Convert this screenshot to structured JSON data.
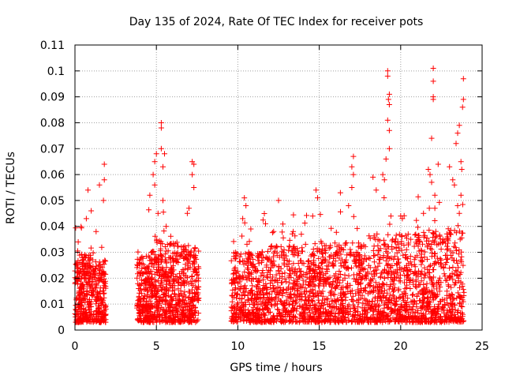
{
  "chart_data": {
    "type": "scatter",
    "title": "Day 135 of 2024, Rate Of TEC Index for receiver pots",
    "xlabel": "GPS time / hours",
    "ylabel": "ROTI / TECUs",
    "xlim": [
      0,
      25
    ],
    "ylim": [
      0,
      0.11
    ],
    "grid": true,
    "marker": "+",
    "color": "#ff0000",
    "x_ticks": [
      0,
      5,
      10,
      15,
      20,
      25
    ],
    "x_tick_labels": [
      "0",
      "5",
      "10",
      "15",
      "20",
      "25"
    ],
    "y_ticks": [
      0,
      0.01,
      0.02,
      0.03,
      0.04,
      0.05,
      0.06,
      0.07,
      0.08,
      0.09,
      0.1,
      0.11
    ],
    "y_tick_labels": [
      "0",
      "0.01",
      "0.02",
      "0.03",
      "0.04",
      "0.05",
      "0.06",
      "0.07",
      "0.08",
      "0.09",
      "0.1",
      "0.11"
    ],
    "density_segments": [
      {
        "x0": 0.0,
        "x1": 1.0,
        "base": 0.012,
        "spread": 0.012,
        "n": 260
      },
      {
        "x0": 1.0,
        "x1": 1.9,
        "base": 0.012,
        "spread": 0.01,
        "n": 180
      },
      {
        "x0": 3.8,
        "x1": 5.0,
        "base": 0.013,
        "spread": 0.012,
        "n": 280
      },
      {
        "x0": 5.0,
        "x1": 6.2,
        "base": 0.015,
        "spread": 0.014,
        "n": 260
      },
      {
        "x0": 6.2,
        "x1": 7.6,
        "base": 0.014,
        "spread": 0.013,
        "n": 280
      },
      {
        "x0": 9.6,
        "x1": 12.0,
        "base": 0.013,
        "spread": 0.012,
        "n": 420
      },
      {
        "x0": 12.0,
        "x1": 15.0,
        "base": 0.014,
        "spread": 0.013,
        "n": 480
      },
      {
        "x0": 15.0,
        "x1": 18.0,
        "base": 0.015,
        "spread": 0.013,
        "n": 480
      },
      {
        "x0": 18.0,
        "x1": 21.0,
        "base": 0.016,
        "spread": 0.015,
        "n": 480
      },
      {
        "x0": 21.0,
        "x1": 23.9,
        "base": 0.016,
        "spread": 0.016,
        "n": 480
      }
    ],
    "notable_points": [
      {
        "x": 0.2,
        "y": 0.034
      },
      {
        "x": 0.7,
        "y": 0.043
      },
      {
        "x": 0.8,
        "y": 0.054
      },
      {
        "x": 1.0,
        "y": 0.046
      },
      {
        "x": 1.3,
        "y": 0.038
      },
      {
        "x": 1.5,
        "y": 0.056
      },
      {
        "x": 1.8,
        "y": 0.064
      },
      {
        "x": 1.8,
        "y": 0.058
      },
      {
        "x": 1.75,
        "y": 0.05
      },
      {
        "x": 4.6,
        "y": 0.052
      },
      {
        "x": 4.8,
        "y": 0.06
      },
      {
        "x": 4.9,
        "y": 0.065
      },
      {
        "x": 5.0,
        "y": 0.068
      },
      {
        "x": 4.9,
        "y": 0.056
      },
      {
        "x": 5.1,
        "y": 0.045
      },
      {
        "x": 5.3,
        "y": 0.08
      },
      {
        "x": 5.3,
        "y": 0.078
      },
      {
        "x": 5.3,
        "y": 0.07
      },
      {
        "x": 5.5,
        "y": 0.068
      },
      {
        "x": 5.4,
        "y": 0.063
      },
      {
        "x": 5.4,
        "y": 0.05
      },
      {
        "x": 5.6,
        "y": 0.04
      },
      {
        "x": 6.9,
        "y": 0.045
      },
      {
        "x": 7.2,
        "y": 0.065
      },
      {
        "x": 7.3,
        "y": 0.064
      },
      {
        "x": 7.2,
        "y": 0.06
      },
      {
        "x": 7.3,
        "y": 0.055
      },
      {
        "x": 7.0,
        "y": 0.047
      },
      {
        "x": 10.4,
        "y": 0.051
      },
      {
        "x": 10.5,
        "y": 0.048
      },
      {
        "x": 10.3,
        "y": 0.043
      },
      {
        "x": 10.8,
        "y": 0.039
      },
      {
        "x": 11.7,
        "y": 0.041
      },
      {
        "x": 12.5,
        "y": 0.05
      },
      {
        "x": 12.2,
        "y": 0.038
      },
      {
        "x": 13.4,
        "y": 0.038
      },
      {
        "x": 13.9,
        "y": 0.037
      },
      {
        "x": 14.6,
        "y": 0.044
      },
      {
        "x": 14.8,
        "y": 0.054
      },
      {
        "x": 14.9,
        "y": 0.051
      },
      {
        "x": 16.3,
        "y": 0.053
      },
      {
        "x": 16.8,
        "y": 0.048
      },
      {
        "x": 17.1,
        "y": 0.067
      },
      {
        "x": 17.0,
        "y": 0.063
      },
      {
        "x": 17.1,
        "y": 0.06
      },
      {
        "x": 17.0,
        "y": 0.055
      },
      {
        "x": 18.3,
        "y": 0.059
      },
      {
        "x": 18.5,
        "y": 0.054
      },
      {
        "x": 18.9,
        "y": 0.06
      },
      {
        "x": 19.0,
        "y": 0.058
      },
      {
        "x": 19.2,
        "y": 0.1
      },
      {
        "x": 19.2,
        "y": 0.098
      },
      {
        "x": 19.3,
        "y": 0.091
      },
      {
        "x": 19.25,
        "y": 0.089
      },
      {
        "x": 19.3,
        "y": 0.087
      },
      {
        "x": 19.2,
        "y": 0.081
      },
      {
        "x": 19.3,
        "y": 0.077
      },
      {
        "x": 19.3,
        "y": 0.07
      },
      {
        "x": 19.1,
        "y": 0.066
      },
      {
        "x": 20.0,
        "y": 0.044
      },
      {
        "x": 20.1,
        "y": 0.043
      },
      {
        "x": 21.1,
        "y": 0.035
      },
      {
        "x": 21.4,
        "y": 0.045
      },
      {
        "x": 21.7,
        "y": 0.062
      },
      {
        "x": 21.8,
        "y": 0.06
      },
      {
        "x": 21.9,
        "y": 0.057
      },
      {
        "x": 22.0,
        "y": 0.101
      },
      {
        "x": 22.0,
        "y": 0.096
      },
      {
        "x": 22.0,
        "y": 0.09
      },
      {
        "x": 22.0,
        "y": 0.089
      },
      {
        "x": 21.9,
        "y": 0.074
      },
      {
        "x": 22.1,
        "y": 0.052
      },
      {
        "x": 22.1,
        "y": 0.047
      },
      {
        "x": 22.3,
        "y": 0.064
      },
      {
        "x": 23.0,
        "y": 0.063
      },
      {
        "x": 23.2,
        "y": 0.058
      },
      {
        "x": 23.3,
        "y": 0.056
      },
      {
        "x": 23.4,
        "y": 0.072
      },
      {
        "x": 23.5,
        "y": 0.076
      },
      {
        "x": 23.6,
        "y": 0.079
      },
      {
        "x": 23.7,
        "y": 0.065
      },
      {
        "x": 23.75,
        "y": 0.062
      },
      {
        "x": 23.7,
        "y": 0.052
      },
      {
        "x": 23.85,
        "y": 0.097
      },
      {
        "x": 23.85,
        "y": 0.089
      },
      {
        "x": 23.8,
        "y": 0.086
      },
      {
        "x": 23.5,
        "y": 0.048
      },
      {
        "x": 23.6,
        "y": 0.045
      }
    ]
  }
}
